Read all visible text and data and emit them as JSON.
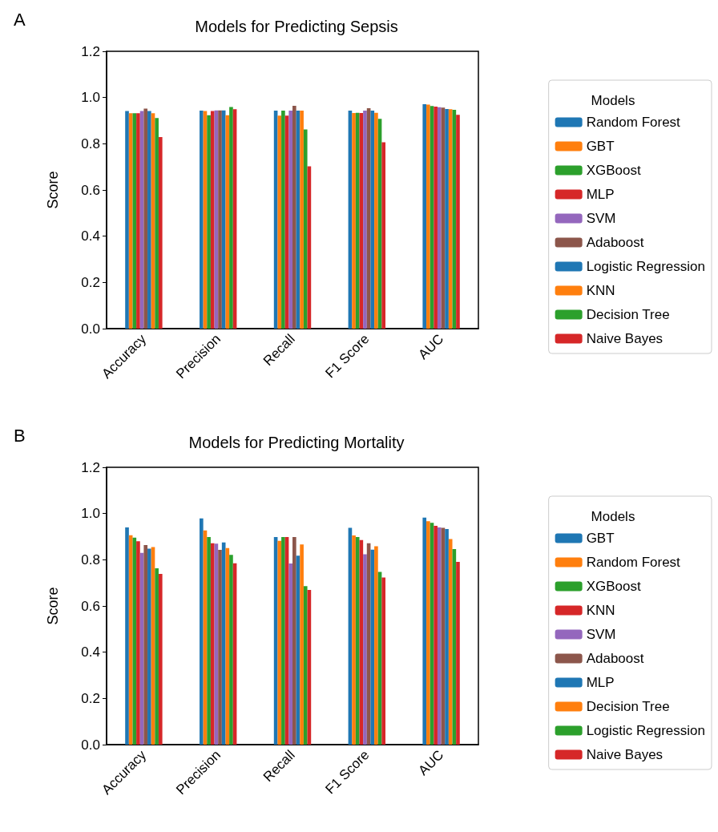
{
  "chart_data": [
    {
      "type": "bar",
      "title": "Models for Predicting Sepsis",
      "annotations": [
        "A"
      ],
      "ylabel": "Score",
      "legend_title": "Models",
      "legend": "right",
      "grid": false,
      "categories": [
        "Accuracy",
        "Precision",
        "Recall",
        "F1 Score",
        "AUC"
      ],
      "ylim": [
        0,
        1.2
      ],
      "yticks": [
        {
          "value": 0,
          "label": "0.0"
        },
        {
          "value": 0.2,
          "label": "0.2"
        },
        {
          "value": 0.4,
          "label": "0.4"
        },
        {
          "value": 0.6,
          "label": "0.6"
        },
        {
          "value": 0.8,
          "label": "0.8"
        },
        {
          "value": 1,
          "label": "1.0"
        },
        {
          "value": 1.2,
          "label": "1.2"
        }
      ],
      "series": [
        {
          "name": "Random Forest",
          "color": "#1f77b4",
          "values": [
            0.942,
            0.943,
            0.943,
            0.943,
            0.971
          ]
        },
        {
          "name": "GBT",
          "color": "#ff7f0e",
          "values": [
            0.932,
            0.942,
            0.922,
            0.933,
            0.969
          ]
        },
        {
          "name": "XGBoost",
          "color": "#2ca02c",
          "values": [
            0.932,
            0.923,
            0.943,
            0.934,
            0.963
          ]
        },
        {
          "name": "MLP",
          "color": "#d62728",
          "values": [
            0.932,
            0.942,
            0.922,
            0.933,
            0.961
          ]
        },
        {
          "name": "SVM",
          "color": "#9467bd",
          "values": [
            0.942,
            0.944,
            0.943,
            0.943,
            0.958
          ]
        },
        {
          "name": "Adaboost",
          "color": "#8c564b",
          "values": [
            0.952,
            0.944,
            0.964,
            0.954,
            0.956
          ]
        },
        {
          "name": "Logistic Regression",
          "color": "#1f77b4",
          "values": [
            0.942,
            0.944,
            0.943,
            0.943,
            0.95
          ]
        },
        {
          "name": "KNN",
          "color": "#ff7f0e",
          "values": [
            0.932,
            0.923,
            0.943,
            0.934,
            0.949
          ]
        },
        {
          "name": "Decision Tree",
          "color": "#2ca02c",
          "values": [
            0.911,
            0.959,
            0.862,
            0.908,
            0.947
          ]
        },
        {
          "name": "Naive Bayes",
          "color": "#d62728",
          "values": [
            0.829,
            0.949,
            0.702,
            0.806,
            0.925
          ]
        }
      ]
    },
    {
      "type": "bar",
      "title": "Models for Predicting Mortality",
      "annotations": [
        "B"
      ],
      "ylabel": "Score",
      "legend_title": "Models",
      "legend": "right",
      "grid": false,
      "categories": [
        "Accuracy",
        "Precision",
        "Recall",
        "F1 Score",
        "AUC"
      ],
      "ylim": [
        0,
        1.2
      ],
      "yticks": [
        {
          "value": 0,
          "label": "0.0"
        },
        {
          "value": 0.2,
          "label": "0.2"
        },
        {
          "value": 0.4,
          "label": "0.4"
        },
        {
          "value": 0.6,
          "label": "0.6"
        },
        {
          "value": 0.8,
          "label": "0.8"
        },
        {
          "value": 1,
          "label": "1.0"
        },
        {
          "value": 1.2,
          "label": "1.2"
        }
      ],
      "series": [
        {
          "name": "GBT",
          "color": "#1f77b4",
          "values": [
            0.94,
            0.979,
            0.898,
            0.938,
            0.982
          ]
        },
        {
          "name": "Random Forest",
          "color": "#ff7f0e",
          "values": [
            0.906,
            0.927,
            0.882,
            0.905,
            0.967
          ]
        },
        {
          "name": "XGBoost",
          "color": "#2ca02c",
          "values": [
            0.896,
            0.898,
            0.898,
            0.898,
            0.96
          ]
        },
        {
          "name": "KNN",
          "color": "#d62728",
          "values": [
            0.88,
            0.871,
            0.898,
            0.885,
            0.947
          ]
        },
        {
          "name": "SVM",
          "color": "#9467bd",
          "values": [
            0.83,
            0.87,
            0.784,
            0.824,
            0.94
          ]
        },
        {
          "name": "Adaboost",
          "color": "#8c564b",
          "values": [
            0.864,
            0.843,
            0.898,
            0.871,
            0.938
          ]
        },
        {
          "name": "MLP",
          "color": "#1f77b4",
          "values": [
            0.848,
            0.875,
            0.818,
            0.844,
            0.933
          ]
        },
        {
          "name": "Decision Tree",
          "color": "#ff7f0e",
          "values": [
            0.855,
            0.851,
            0.866,
            0.858,
            0.89
          ]
        },
        {
          "name": "Logistic Regression",
          "color": "#2ca02c",
          "values": [
            0.763,
            0.821,
            0.686,
            0.747,
            0.846
          ]
        },
        {
          "name": "Naive Bayes",
          "color": "#d62728",
          "values": [
            0.739,
            0.785,
            0.669,
            0.723,
            0.791
          ]
        }
      ]
    }
  ]
}
